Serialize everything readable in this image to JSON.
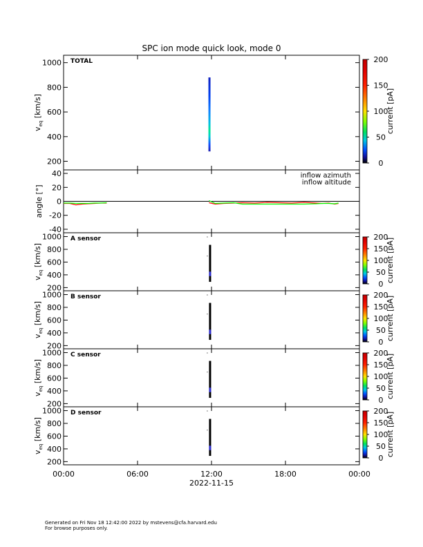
{
  "title": "SPC ion mode quick look, mode 0",
  "date_label": "2022-11-15",
  "x_ticks": [
    "00:00",
    "06:00",
    "12:00",
    "18:00",
    "00:00"
  ],
  "footer": {
    "line1": "Generated on Fri Nov 18 12:42:00 2022 by mstevens@cfa.harvard.edu",
    "line2": "For browse purposes only."
  },
  "chart_data": [
    {
      "type": "heatmap",
      "panel_label": "TOTAL",
      "ylabel": "v_eq [km/s]",
      "ylim": [
        130,
        1060
      ],
      "y_ticks": [
        200,
        400,
        600,
        800,
        1000
      ],
      "colorbar_label": "current [pA]",
      "colorbar_ticks": [
        0,
        50,
        100,
        150,
        200
      ],
      "data_x_range_hours": [
        11.75,
        11.9
      ],
      "data_y_range": [
        280,
        880
      ]
    },
    {
      "type": "line",
      "ylabel": "angle [°]",
      "ylim": [
        -45,
        45
      ],
      "y_ticks": [
        -40,
        -20,
        0,
        20,
        40
      ],
      "zero_line": true,
      "series": [
        {
          "name": "inflow azimuth",
          "color": "#ff0000",
          "x": [
            0,
            0.5,
            1,
            1.5,
            2,
            2.5,
            3,
            3.5,
            null,
            11.8,
            12.3,
            13,
            13.8,
            14.5,
            15.5,
            16.5,
            17.5,
            18.5,
            19.5,
            20.5,
            21,
            21.5,
            22,
            22.3
          ],
          "y": [
            -3,
            -3,
            -5,
            -4,
            -3.5,
            -3,
            -2.5,
            -2.5,
            null,
            -2,
            -4,
            -3,
            -2.5,
            -2,
            -2.5,
            -1.5,
            -2,
            -2.5,
            -1.5,
            -2.5,
            -3,
            -2.5,
            -4,
            -3
          ]
        },
        {
          "name": "inflow altitude",
          "color": "#00ff00",
          "x": [
            0,
            0.5,
            1,
            1.5,
            2,
            2.5,
            3,
            3.5,
            null,
            11.8,
            12.3,
            13,
            13.8,
            14.5,
            15.5,
            16.5,
            17.5,
            18.5,
            19.5,
            20.5,
            21,
            21.5,
            22,
            22.3
          ],
          "y": [
            -2.5,
            -2.5,
            -3,
            -3,
            -3,
            -2.5,
            -2.5,
            -2,
            null,
            1,
            -3,
            -2.5,
            -2,
            -4,
            -4,
            -4,
            -4,
            -4,
            -4,
            -3.5,
            -3,
            -3,
            -3.5,
            -2.5
          ]
        }
      ]
    },
    {
      "type": "heatmap",
      "panel_label": "A sensor",
      "ylabel": "v_eq [km/s]",
      "ylim": [
        150,
        1060
      ],
      "y_ticks": [
        200,
        400,
        600,
        800,
        1000
      ],
      "colorbar_label": "current [pA]",
      "colorbar_ticks": [
        0,
        50,
        100,
        150,
        200
      ],
      "data_x_range_hours": [
        11.8,
        11.88
      ],
      "data_y_range": [
        290,
        870
      ]
    },
    {
      "type": "heatmap",
      "panel_label": "B sensor",
      "ylabel": "v_eq [km/s]",
      "ylim": [
        150,
        1060
      ],
      "y_ticks": [
        200,
        400,
        600,
        800,
        1000
      ],
      "colorbar_label": "current [pA]",
      "colorbar_ticks": [
        0,
        50,
        100,
        150,
        200
      ],
      "data_x_range_hours": [
        11.8,
        11.88
      ],
      "data_y_range": [
        290,
        870
      ]
    },
    {
      "type": "heatmap",
      "panel_label": "C sensor",
      "ylabel": "v_eq [km/s]",
      "ylim": [
        150,
        1060
      ],
      "y_ticks": [
        200,
        400,
        600,
        800,
        1000
      ],
      "colorbar_label": "current [pA]",
      "colorbar_ticks": [
        0,
        50,
        100,
        150,
        200
      ],
      "data_x_range_hours": [
        11.8,
        11.88
      ],
      "data_y_range": [
        290,
        870
      ]
    },
    {
      "type": "heatmap",
      "panel_label": "D sensor",
      "ylabel": "v_eq [km/s]",
      "ylim": [
        150,
        1060
      ],
      "y_ticks": [
        200,
        400,
        600,
        800,
        1000
      ],
      "colorbar_label": "current [pA]",
      "colorbar_ticks": [
        0,
        50,
        100,
        150,
        200
      ],
      "data_x_range_hours": [
        11.8,
        11.88
      ],
      "data_y_range": [
        290,
        870
      ]
    }
  ]
}
